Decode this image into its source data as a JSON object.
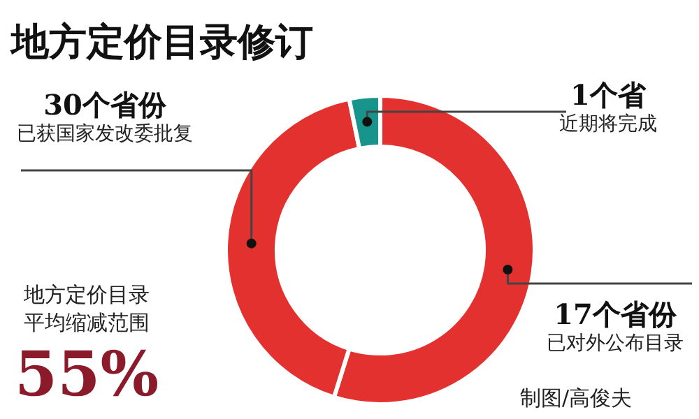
{
  "chart_data": {
    "type": "donut",
    "title": "地方定价目录修订",
    "categories": [
      "已对外公布目录",
      "已获国家发改委批复",
      "近期将完成"
    ],
    "values": [
      17,
      13,
      1
    ],
    "value_labels": [
      "17个省份",
      null,
      "1个省"
    ],
    "colors": [
      "#e2312f",
      "#e2312f",
      "#17958c"
    ],
    "annotations": [
      "地方定价目录",
      "平均缩减范围",
      "55%",
      "制图/高俊夫",
      "30个省份"
    ],
    "legend": false
  }
}
